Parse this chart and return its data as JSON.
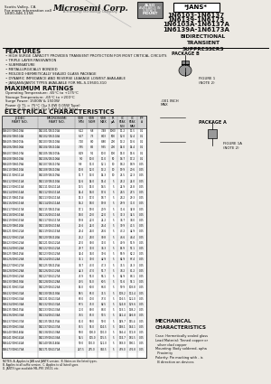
{
  "title_lines": [
    "1N6103-1N6137",
    "1N6139-1N6173",
    "1N6103A-1N6137A",
    "1N6139A-1N6173A"
  ],
  "jans_label": "*JANS*",
  "subtitle": "BIDIRECTIONAL\nTRANSIENT\nSUPPRESSERS",
  "company": "Microsemi Corp.",
  "addr1": "Scotts Valley, CA",
  "addr2": "For more information call",
  "addr3": "1-800-446-1158",
  "features_title": "FEATURES",
  "features": [
    "HIGH SURGE CAPACITY PROVIDES TRANSIENT PROTECTION FOR MOST CRITICAL CIRCUITS",
    "TRIPLE LAYER PASSIVATION",
    "SUBMINIATURE",
    "METALLURGICALLY BONDED",
    "MOLDED HERMETICALLY SEALED GLASS PACKAGE",
    "DYNAMIC IMPEDANCE AND REVERSE LEAKAGE LOWEST AVAILABLE",
    "JAN/JANS/JANTX TYPES AVAILABLE FOR MIL-S-19500-310"
  ],
  "max_ratings_title": "MAXIMUM RATINGS",
  "max_ratings": [
    "Operating Temperature: -65°C to +175°C",
    "Storage Temperature: -65°C to +200°C",
    "Surge Power: 1500W & 1500W",
    "Power @ TL = 75°C (1μ 3.0W 0.05W Type)",
    "Power @ TL = 83°C (1μ 5.0W 0.1W Type)"
  ],
  "elec_char_title": "ELECTRICAL CHARACTERISTICS",
  "table_rows": [
    [
      "1N6103/1N6103A",
      "1N1101/1N1101A",
      "6.12",
      "6.8",
      "7.48",
      "1000",
      "11.2",
      "11.5",
      "0.1"
    ],
    [
      "1N6104/1N6104A",
      "1N1102/1N1102A",
      "6.57",
      "7.3",
      "8.03",
      "500",
      "12.0",
      "12.4",
      "0.1"
    ],
    [
      "1N6105/1N6105A",
      "1N1103/1N1103A",
      "7.20",
      "8.0",
      "8.80",
      "200",
      "13.2",
      "13.6",
      "0.1"
    ],
    [
      "1N6106/1N6106A",
      "1N1104/1N1104A",
      "7.65",
      "8.5",
      "9.35",
      "200",
      "14.0",
      "14.4",
      "0.1"
    ],
    [
      "1N6107/1N6107A",
      "1N1105/1N1105A",
      "8.19",
      "9.1",
      "10.0",
      "100",
      "15.0",
      "15.6",
      "0.1"
    ],
    [
      "1N6108/1N6108A",
      "1N1106/1N1106A",
      "9.0",
      "10.0",
      "11.0",
      "50",
      "16.7",
      "17.2",
      "0.1"
    ],
    [
      "1N6109/1N6109A",
      "1N1107/1N1107A",
      "9.9",
      "11.0",
      "12.1",
      "10",
      "18.2",
      "18.9",
      "0.05"
    ],
    [
      "1N6110/1N6110A",
      "1N1108/1N1108A",
      "10.8",
      "12.0",
      "13.2",
      "10",
      "19.9",
      "20.6",
      "0.05"
    ],
    [
      "1N6111/1N6111A",
      "1N1109/1N1109A",
      "11.7",
      "13.0",
      "14.3",
      "10",
      "21.5",
      "22.3",
      "0.05"
    ],
    [
      "1N6112/1N6112A",
      "1N1110/1N1110A",
      "12.6",
      "14.0",
      "15.4",
      "5",
      "23.2",
      "24.0",
      "0.05"
    ],
    [
      "1N6113/1N6113A",
      "1N1111/1N1111A",
      "13.5",
      "15.0",
      "16.5",
      "5",
      "24.9",
      "25.8",
      "0.05"
    ],
    [
      "1N6114/1N6114A",
      "1N1112/1N1112A",
      "14.4",
      "16.0",
      "17.6",
      "5",
      "26.5",
      "27.5",
      "0.05"
    ],
    [
      "1N6115/1N6115A",
      "1N1113/1N1113A",
      "15.3",
      "17.0",
      "18.7",
      "5",
      "28.2",
      "29.3",
      "0.05"
    ],
    [
      "1N6116/1N6116A",
      "1N1114/1N1114A",
      "16.2",
      "18.0",
      "19.8",
      "5",
      "29.9",
      "31.0",
      "0.05"
    ],
    [
      "1N6117/1N6117A",
      "1N1115/1N1115A",
      "17.1",
      "19.0",
      "20.9",
      "5",
      "31.6",
      "32.8",
      "0.05"
    ],
    [
      "1N6118/1N6118A",
      "1N1116/1N1116A",
      "18.0",
      "20.0",
      "22.0",
      "5",
      "33.3",
      "34.5",
      "0.05"
    ],
    [
      "1N6119/1N6119A",
      "1N1117/1N1117A",
      "19.8",
      "22.0",
      "24.2",
      "5",
      "36.7",
      "38.0",
      "0.05"
    ],
    [
      "1N6120/1N6120A",
      "1N1118/1N1118A",
      "21.6",
      "24.0",
      "26.4",
      "5",
      "39.9",
      "41.5",
      "0.05"
    ],
    [
      "1N6121/1N6121A",
      "1N1119/1N1119A",
      "23.4",
      "26.0",
      "28.6",
      "5",
      "43.2",
      "44.9",
      "0.05"
    ],
    [
      "1N6122/1N6122A",
      "1N1120/1N1120A",
      "25.2",
      "28.0",
      "30.8",
      "5",
      "46.6",
      "48.4",
      "0.05"
    ],
    [
      "1N6123/1N6123A",
      "1N1121/1N1121A",
      "27.0",
      "30.0",
      "33.0",
      "5",
      "49.9",
      "51.9",
      "0.05"
    ],
    [
      "1N6124/1N6124A",
      "1N1122/1N1122A",
      "29.7",
      "33.0",
      "36.3",
      "5",
      "54.9",
      "57.1",
      "0.05"
    ],
    [
      "1N6125/1N6125A",
      "1N1123/1N1123A",
      "32.4",
      "36.0",
      "39.6",
      "5",
      "59.9",
      "62.2",
      "0.05"
    ],
    [
      "1N6126/1N6126A",
      "1N1124/1N1124A",
      "35.1",
      "39.0",
      "42.9",
      "5",
      "64.9",
      "67.4",
      "0.05"
    ],
    [
      "1N6127/1N6127A",
      "1N1125/1N1125A",
      "38.7",
      "43.0",
      "47.3",
      "5",
      "71.5",
      "74.3",
      "0.05"
    ],
    [
      "1N6128/1N6128A",
      "1N1126/1N1126A",
      "42.3",
      "47.0",
      "51.7",
      "5",
      "78.2",
      "81.2",
      "0.05"
    ],
    [
      "1N6129/1N6129A",
      "1N1127/1N1127A",
      "45.9",
      "51.0",
      "56.1",
      "5",
      "84.9",
      "88.1",
      "0.05"
    ],
    [
      "1N6130/1N6130A",
      "1N1128/1N1128A",
      "49.5",
      "55.0",
      "60.5",
      "5",
      "91.6",
      "95.1",
      "0.05"
    ],
    [
      "1N6131/1N6131A",
      "1N1129/1N1129A",
      "54.0",
      "60.0",
      "66.0",
      "5",
      "99.9",
      "103.8",
      "0.05"
    ],
    [
      "1N6132/1N6132A",
      "1N1130/1N1130A",
      "58.5",
      "65.0",
      "71.5",
      "5",
      "108.2",
      "112.4",
      "0.05"
    ],
    [
      "1N6133/1N6133A",
      "1N1131/1N1131A",
      "63.0",
      "70.0",
      "77.0",
      "5",
      "116.5",
      "121.0",
      "0.05"
    ],
    [
      "1N6134/1N6134A",
      "1N1132/1N1132A",
      "67.5",
      "75.0",
      "82.5",
      "5",
      "124.8",
      "129.6",
      "0.05"
    ],
    [
      "1N6135/1N6135A",
      "1N1133/1N1133A",
      "72.0",
      "80.0",
      "88.0",
      "5",
      "133.1",
      "138.2",
      "0.05"
    ],
    [
      "1N6136/1N6136A",
      "1N1134/1N1134A",
      "76.5",
      "85.0",
      "93.5",
      "5",
      "141.4",
      "146.8",
      "0.05"
    ],
    [
      "1N6137/1N6137A",
      "1N1135/1N1135A",
      "81.0",
      "90.0",
      "99.0",
      "5",
      "149.7",
      "155.4",
      "0.05"
    ],
    [
      "1N6139/1N6139A",
      "1N1137/1N1137A",
      "85.5",
      "95.0",
      "104.5",
      "5",
      "158.1",
      "164.1",
      "0.05"
    ],
    [
      "1N6140/1N6140A",
      "1N1138/1N1138A",
      "90.0",
      "100.0",
      "110.0",
      "5",
      "166.4",
      "172.8",
      "0.05"
    ],
    [
      "1N6141/1N6141A",
      "1N1139/1N1139A",
      "94.5",
      "105.0",
      "115.5",
      "5",
      "174.7",
      "181.5",
      "0.05"
    ],
    [
      "1N6142/1N6142A",
      "1N1140/1N1140A",
      "99.0",
      "110.0",
      "121.0",
      "5",
      "183.0",
      "190.1",
      "0.05"
    ],
    [
      "1N6173/1N6173A",
      "1N1171/1N1171A",
      "247.5",
      "275.0",
      "302.5",
      "5",
      "459.0",
      "476.8",
      "0.05"
    ]
  ],
  "notes": [
    "NOTES: A. Applies to JAN and JANTX version.  B. Notes on the listed types.",
    "B. Applies to all suffix version.  C. Applies to all listed types.",
    "D. JANTX type available MIL-PRF-19500, etc."
  ],
  "mech_char_title": "MECHANICAL\nCHARACTERISTICS",
  "mech_chars": [
    "Case: Hermetically sealed glass",
    "Lead Material: Tinned copper or",
    "  silver clad copper",
    "Mounting: Body soldered, apha",
    "  Proximity",
    "Polarity: Pin marking with - is",
    "  B direction on devices"
  ],
  "pkg_b_label": "PACKAGE B",
  "pkg_a_label": "PACKAGE A",
  "fig1_label": "FIGURE 1\n(NOTE 2)",
  "fig1a_label": "FIGURE 1A\n(NOTE 2)",
  "bg_color": "#ece9e3",
  "text_color": "#111111",
  "header_bg": "#d4d4d4",
  "table_stripe": "#f4f4f4"
}
